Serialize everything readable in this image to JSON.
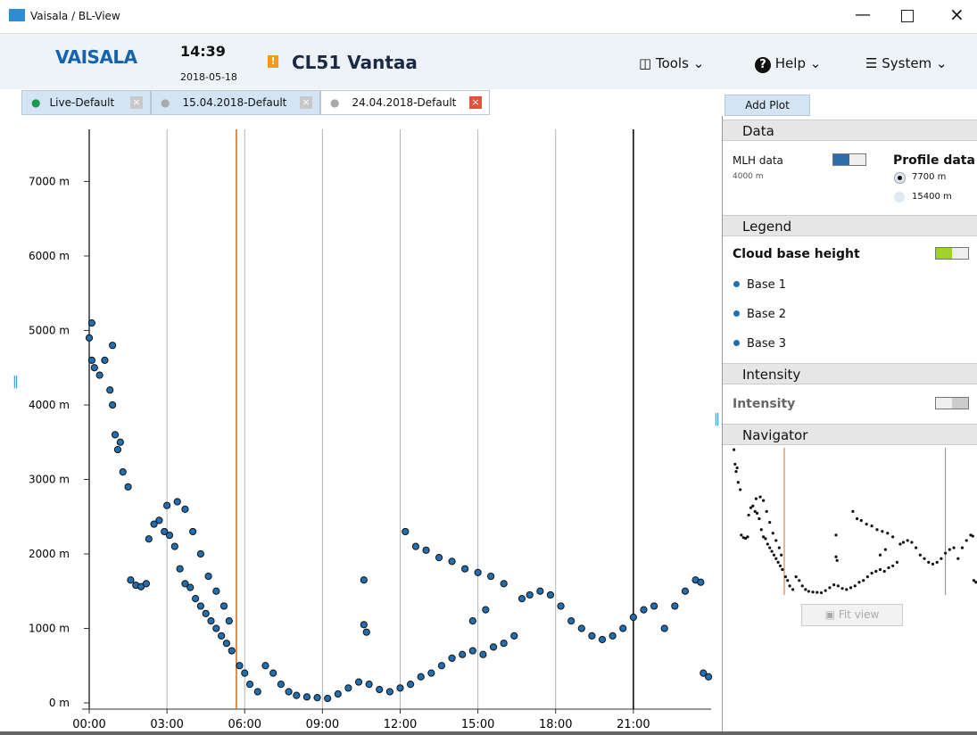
{
  "window": {
    "title": "Vaisala / BL-View"
  },
  "header": {
    "logo": "VAISALA",
    "time": "14:39",
    "date": "2018-05-18",
    "site": "CL51 Vantaa",
    "menus": [
      "Tools",
      "Help",
      "System"
    ]
  },
  "tabs": [
    "Live-Default",
    "15.04.2018-Default",
    "24.04.2018-Default"
  ],
  "side": {
    "add_plot": "Add Plot",
    "data_heading": "Data",
    "mlh_label": "MLH data",
    "mlh_value": "4000 m",
    "profile_label": "Profile data",
    "profile_options": [
      "7700 m",
      "15400 m"
    ],
    "legend_heading": "Legend",
    "cloud_base": "Cloud base height",
    "intensity_heading": "Intensity",
    "intensity_label": "Intensity",
    "navigator_heading": "Navigator",
    "fit_view": "Fit view"
  },
  "chart_data": {
    "type": "scatter",
    "xlim": [
      0,
      24
    ],
    "ylim": [
      0,
      7700
    ],
    "xticks": [
      {
        "value": 0,
        "label": "00:00"
      },
      {
        "value": 3,
        "label": "03:00"
      },
      {
        "value": 6,
        "label": "06:00"
      },
      {
        "value": 9,
        "label": "09:00"
      },
      {
        "value": 12,
        "label": "12:00"
      },
      {
        "value": 15,
        "label": "15:00"
      },
      {
        "value": 18,
        "label": "18:00"
      },
      {
        "value": 21,
        "label": "21:00"
      }
    ],
    "yticks": [
      {
        "value": 0,
        "label": "0 m"
      },
      {
        "value": 1000,
        "label": "1000 m"
      },
      {
        "value": 2000,
        "label": "2000 m"
      },
      {
        "value": 3000,
        "label": "3000 m"
      },
      {
        "value": 4000,
        "label": "4000 m"
      },
      {
        "value": 5000,
        "label": "5000 m"
      },
      {
        "value": 6000,
        "label": "6000 m"
      },
      {
        "value": 7000,
        "label": "7000 m"
      }
    ],
    "grid": true,
    "markers": [
      {
        "value": 5.68,
        "color": "#d2691e"
      },
      {
        "value": 21,
        "color": "#000000"
      }
    ],
    "series": [
      {
        "name": "Base 1",
        "color": "#1f6fb2",
        "x": [
          0.0,
          0.1,
          0.2,
          0.4,
          0.6,
          0.8,
          0.9,
          1.0,
          1.1,
          1.3,
          1.5,
          1.6,
          1.8,
          2.0,
          2.2,
          2.3,
          2.5,
          2.7,
          2.9,
          3.1,
          3.3,
          3.5,
          3.7,
          3.9,
          4.1,
          4.3,
          4.5,
          4.7,
          4.9,
          5.1,
          5.3,
          5.5,
          5.8,
          6.0,
          6.2,
          6.5,
          6.8,
          7.1,
          7.4,
          7.7,
          8.0,
          8.4,
          8.8,
          9.2,
          9.6,
          10.0,
          10.4,
          10.8,
          11.2,
          11.6,
          12.0,
          12.4,
          12.8,
          13.2,
          13.6,
          14.0,
          14.4,
          14.8,
          15.2,
          15.6,
          16.0,
          16.4,
          16.7,
          17.0,
          17.4,
          17.8,
          18.2,
          18.6,
          19.0,
          19.4,
          19.8,
          20.2,
          20.6,
          21.0,
          21.4,
          21.8,
          22.2,
          22.6,
          23.0,
          23.4,
          23.6,
          23.7,
          23.9
        ],
        "values": [
          4900,
          4600,
          4500,
          4400,
          4600,
          4200,
          4000,
          3600,
          3400,
          3100,
          2900,
          1650,
          1580,
          1560,
          1600,
          2200,
          2400,
          2450,
          2300,
          2250,
          2100,
          1800,
          1600,
          1550,
          1400,
          1300,
          1200,
          1100,
          1000,
          900,
          800,
          700,
          500,
          400,
          250,
          150,
          500,
          400,
          250,
          150,
          100,
          80,
          70,
          60,
          120,
          200,
          280,
          250,
          180,
          150,
          200,
          250,
          350,
          400,
          500,
          600,
          650,
          700,
          650,
          750,
          800,
          900,
          1400,
          1450,
          1500,
          1450,
          1300,
          1100,
          1000,
          900,
          850,
          900,
          1000,
          1150,
          1250,
          1300,
          1000,
          1300,
          1500,
          1650,
          1620,
          400,
          350
        ]
      },
      {
        "name": "Base 2",
        "color": "#1f6fb2",
        "x": [
          0.1,
          0.9,
          1.2,
          3.0,
          3.4,
          3.7,
          4.0,
          4.3,
          4.6,
          4.9,
          5.2,
          5.4,
          12.6,
          13.0,
          13.5,
          14.0,
          14.5,
          15.0,
          15.5,
          16.0
        ],
        "values": [
          5100,
          4800,
          3500,
          2650,
          2700,
          2600,
          2300,
          2000,
          1700,
          1500,
          1300,
          1100,
          2100,
          2050,
          1950,
          1900,
          1800,
          1750,
          1700,
          1600
        ]
      },
      {
        "name": "Base 3",
        "color": "#1f6fb2",
        "x": [
          10.6,
          10.6,
          10.7,
          12.2,
          14.8,
          15.3
        ],
        "values": [
          1650,
          1050,
          950,
          2300,
          1100,
          1250
        ]
      }
    ]
  }
}
